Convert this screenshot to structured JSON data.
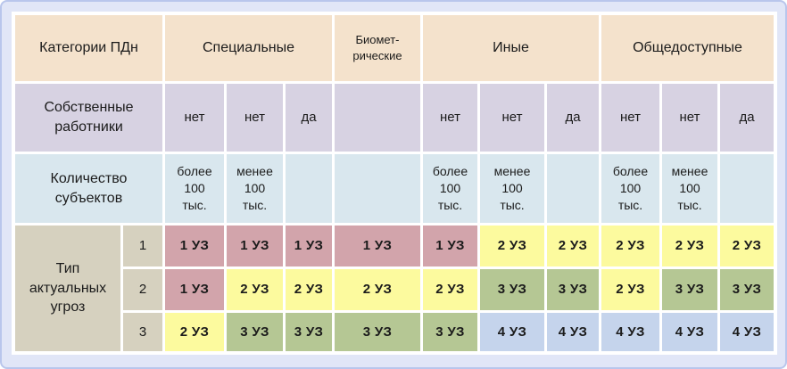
{
  "palette": {
    "header_bg": "#f4e2cc",
    "employees_row_bg": "#d7d2e2",
    "subjects_row_bg": "#d9e7ee",
    "threat_label_bg": "#d6d1bf",
    "uz1": "#d2a4ab",
    "uz2": "#fcfa9e",
    "uz3": "#b5c794",
    "uz4": "#c5d4ec",
    "panel_bg": "#e1e6f7",
    "panel_border": "#b9c6ec",
    "gridline": "#ffffff",
    "text": "#1b1b1b"
  },
  "chart_data": {
    "type": "table",
    "categories_header": "Категории ПДн",
    "category_groups": [
      {
        "name": "Специальные",
        "columns": 3
      },
      {
        "name": "Биомет-\nрические",
        "columns": 1
      },
      {
        "name": "Иные",
        "columns": 3
      },
      {
        "name": "Общедоступные",
        "columns": 3
      }
    ],
    "row_labels": {
      "own_employees": "Собственные\nработники",
      "subject_count": "Количество\nсубъектов",
      "threat_type": "Тип\nактуальных\nугроз"
    },
    "own_employees": [
      "нет",
      "нет",
      "да",
      "",
      "нет",
      "нет",
      "да",
      "нет",
      "нет",
      "да"
    ],
    "subject_count": [
      "более\n100\nтыс.",
      "менее\n100\nтыс.",
      "",
      "",
      "более\n100\nтыс.",
      "менее\n100\nтыс.",
      "",
      "более\n100\nтыс.",
      "менее\n100\nтыс.",
      ""
    ],
    "threat_type_rows": [
      {
        "threat_type": "1",
        "security_levels": [
          "1 УЗ",
          "1 УЗ",
          "1 УЗ",
          "1 УЗ",
          "1 УЗ",
          "2 УЗ",
          "2 УЗ",
          "2 УЗ",
          "2 УЗ",
          "2 УЗ"
        ]
      },
      {
        "threat_type": "2",
        "security_levels": [
          "1 УЗ",
          "2 УЗ",
          "2 УЗ",
          "2 УЗ",
          "2 УЗ",
          "3 УЗ",
          "3 УЗ",
          "2 УЗ",
          "3 УЗ",
          "3 УЗ"
        ]
      },
      {
        "threat_type": "3",
        "security_levels": [
          "2 УЗ",
          "3 УЗ",
          "3 УЗ",
          "3 УЗ",
          "3 УЗ",
          "4 УЗ",
          "4 УЗ",
          "4 УЗ",
          "4 УЗ",
          "4 УЗ"
        ]
      }
    ]
  }
}
